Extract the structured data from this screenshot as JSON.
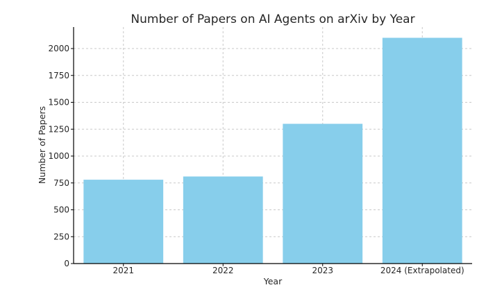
{
  "chart_data": {
    "type": "bar",
    "title": "Number of Papers on AI Agents on arXiv by Year",
    "xlabel": "Year",
    "ylabel": "Number of Papers",
    "categories": [
      "2021",
      "2022",
      "2023",
      "2024 (Extrapolated)"
    ],
    "values": [
      780,
      810,
      1300,
      2100
    ],
    "ylim": [
      0,
      2200
    ],
    "yticks": [
      0,
      250,
      500,
      750,
      1000,
      1250,
      1500,
      1750,
      2000
    ],
    "grid": true,
    "bar_color": "#87ceeb"
  }
}
